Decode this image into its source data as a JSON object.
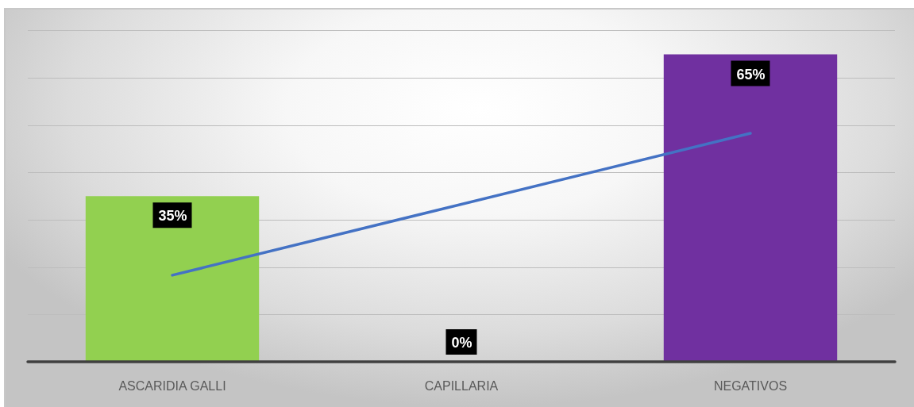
{
  "chart_data": {
    "type": "bar",
    "categories": [
      "ASCARIDIA GALLI",
      "CAPILLARIA",
      "NEGATIVOS"
    ],
    "series": [
      {
        "values": [
          35,
          0,
          65
        ],
        "colors": [
          "#92d050",
          null,
          "#7030a0"
        ],
        "value_labels": [
          "35%",
          "0%",
          "65%"
        ]
      },
      {
        "type": "line",
        "x": [
          "ASCARIDIA GALLI",
          "NEGATIVOS"
        ],
        "values": [
          18.3,
          48.3
        ],
        "color": "#4472c4"
      }
    ],
    "ylim": [
      0,
      70
    ],
    "yticks": [
      {
        "value": 0,
        "label": null
      },
      {
        "value": 10,
        "label": null
      },
      {
        "value": 20,
        "label": null
      },
      {
        "value": 30,
        "label": null
      },
      {
        "value": 40,
        "label": null
      },
      {
        "value": 50,
        "label": null
      },
      {
        "value": 60,
        "label": null
      },
      {
        "value": 70,
        "label": null
      }
    ],
    "grid": "y",
    "tick_labels": "x"
  }
}
